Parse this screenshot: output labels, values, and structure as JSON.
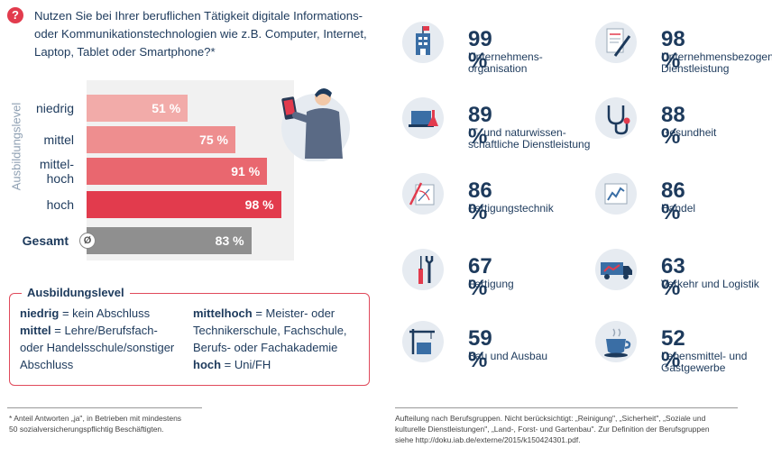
{
  "question": {
    "lines": [
      "Nutzen Sie bei Ihrer beruflichen Tätigkeit digitale Informations-",
      "oder Kommunikationstechnologien wie z.B. Computer, Internet,",
      "Laptop, Tablet oder Smartphone?*"
    ],
    "icon": "?"
  },
  "chart_data": [
    {
      "type": "bar",
      "orientation": "horizontal",
      "ylabel": "Ausbildungslevel",
      "categories": [
        "niedrig",
        "mittel",
        "mittel-hoch",
        "hoch",
        "Gesamt"
      ],
      "category_lines": [
        [
          "niedrig"
        ],
        [
          "mittel"
        ],
        [
          "mittel-",
          "hoch"
        ],
        [
          "hoch"
        ],
        [
          "Gesamt"
        ]
      ],
      "values": [
        51,
        75,
        91,
        98,
        83
      ],
      "value_labels": [
        "51 %",
        "75 %",
        "91 %",
        "98 %",
        "83 %"
      ],
      "xlim": [
        0,
        100
      ],
      "colors": [
        "#f2aba9",
        "#ee8e8f",
        "#e9676f",
        "#e23b4d",
        "#8f8f8f"
      ],
      "average_symbol": "Ø"
    },
    {
      "type": "table",
      "items": [
        {
          "value": 99,
          "label": "99 %",
          "lines": [
            "Unternehmens-",
            "organisation"
          ],
          "icon": "office-building-icon"
        },
        {
          "value": 98,
          "label": "98 %",
          "lines": [
            "Unternehmensbezogene",
            "Dienstleistung"
          ],
          "icon": "document-pen-icon"
        },
        {
          "value": 89,
          "label": "89 %",
          "lines": [
            "IT- und naturwissen-",
            "schaftliche Dienstleistung"
          ],
          "icon": "laptop-flask-icon"
        },
        {
          "value": 88,
          "label": "88 %",
          "lines": [
            "Gesundheit"
          ],
          "icon": "stethoscope-icon"
        },
        {
          "value": 86,
          "label": "86 %",
          "lines": [
            "Fertigungstechnik"
          ],
          "icon": "technical-drawing-icon"
        },
        {
          "value": 86,
          "label": "86 %",
          "lines": [
            "Handel"
          ],
          "icon": "line-chart-icon"
        },
        {
          "value": 67,
          "label": "67 %",
          "lines": [
            "Fertigung"
          ],
          "icon": "tools-icon"
        },
        {
          "value": 63,
          "label": "63 %",
          "lines": [
            "Verkehr und Logistik"
          ],
          "icon": "truck-icon"
        },
        {
          "value": 59,
          "label": "59 %",
          "lines": [
            "Bau und Ausbau"
          ],
          "icon": "construction-icon"
        },
        {
          "value": 52,
          "label": "52 %",
          "lines": [
            "Lebensmittel- und",
            "Gastgewerbe"
          ],
          "icon": "coffee-cup-icon"
        }
      ]
    }
  ],
  "legend": {
    "title": "Ausbildungslevel",
    "left": [
      {
        "term": "niedrig",
        "rest": " = kein Abschluss"
      },
      {
        "term": "mittel",
        "rest": " = Lehre/Berufsfach-"
      },
      {
        "term": "",
        "rest": "oder Handelsschule/sonstiger"
      },
      {
        "term": "",
        "rest": "Abschluss"
      }
    ],
    "right": [
      {
        "term": "mittelhoch",
        "rest": " = Meister- oder"
      },
      {
        "term": "",
        "rest": "Technikerschule, Fachschule,"
      },
      {
        "term": "",
        "rest": "Berufs- oder Fachakademie"
      },
      {
        "term": "hoch",
        "rest": " = Uni/FH"
      }
    ]
  },
  "footnotes": {
    "left": [
      "* Anteil Antworten „ja\", in Betrieben mit mindestens",
      "  50 sozialversicherungspflichtig Beschäftigten."
    ],
    "right": [
      "Aufteilung nach Berufsgruppen. Nicht berücksichtigt: „Reinigung\", „Sicherheit\", „Soziale und",
      "kulturelle Dienstleistungen\", „Land-, Forst- und Gartenbau\". Zur Definition der Berufsgruppen",
      "siehe http://doku.iab.de/externe/2015/k150424301.pdf."
    ]
  },
  "colors": {
    "accent": "#e23b4d",
    "navy": "#1d3a5c",
    "iconbg": "#e6ebf1",
    "gray": "#8f8f8f"
  }
}
